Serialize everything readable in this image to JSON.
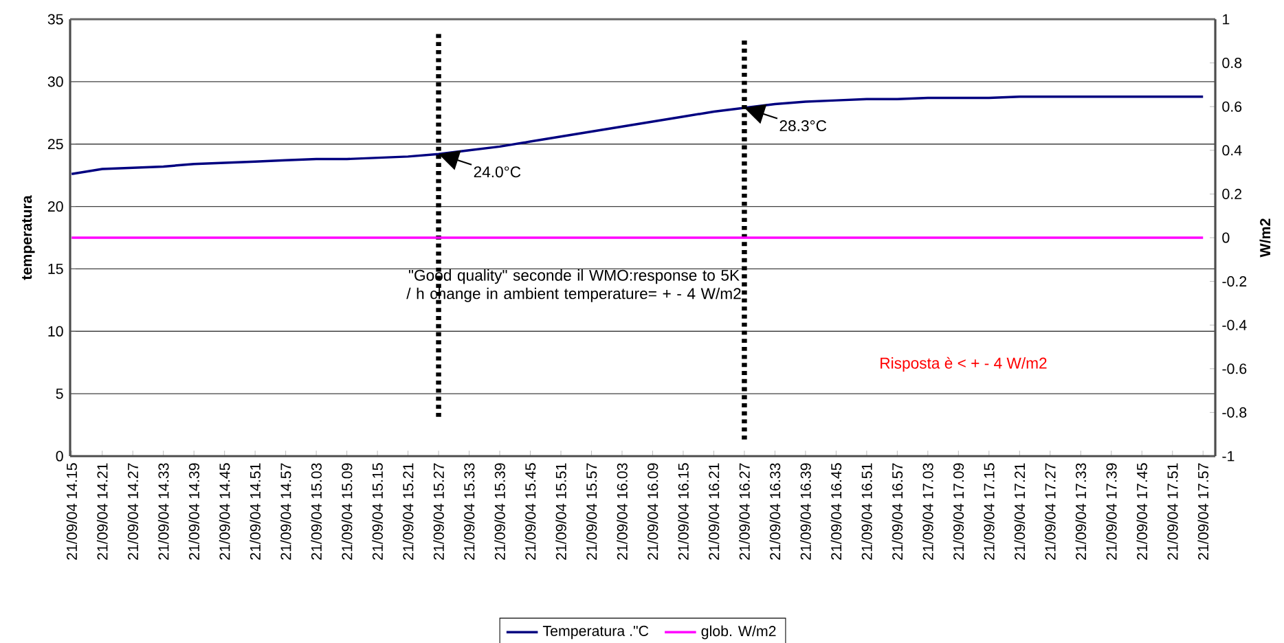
{
  "chart_data": {
    "type": "line",
    "ylabel": "temperatura",
    "y2label": "W/m2",
    "categories": [
      "21/09/04 14.15",
      "21/09/04 14.21",
      "21/09/04 14.27",
      "21/09/04 14.33",
      "21/09/04 14.39",
      "21/09/04 14.45",
      "21/09/04 14.51",
      "21/09/04 14.57",
      "21/09/04 15.03",
      "21/09/04 15.09",
      "21/09/04 15.15",
      "21/09/04 15.21",
      "21/09/04 15.27",
      "21/09/04 15.33",
      "21/09/04 15.39",
      "21/09/04 15.45",
      "21/09/04 15.51",
      "21/09/04 15.57",
      "21/09/04 16.03",
      "21/09/04 16.09",
      "21/09/04 16.15",
      "21/09/04 16.21",
      "21/09/04 16.27",
      "21/09/04 16.33",
      "21/09/04 16.39",
      "21/09/04 16.45",
      "21/09/04 16.51",
      "21/09/04 16.57",
      "21/09/04 17.03",
      "21/09/04 17.09",
      "21/09/04 17.15",
      "21/09/04 17.21",
      "21/09/04 17.27",
      "21/09/04 17.33",
      "21/09/04 17.39",
      "21/09/04 17.45",
      "21/09/04 17.51",
      "21/09/04 17.57"
    ],
    "series": [
      {
        "name": "Temperatura .\"C",
        "color": "#000080",
        "values": [
          22.6,
          23.0,
          23.1,
          23.2,
          23.4,
          23.5,
          23.6,
          23.7,
          23.8,
          23.8,
          23.9,
          24.0,
          24.2,
          24.5,
          24.8,
          25.2,
          25.6,
          26.0,
          26.4,
          26.8,
          27.2,
          27.6,
          27.9,
          28.2,
          28.4,
          28.5,
          28.6,
          28.6,
          28.7,
          28.7,
          28.7,
          28.8,
          28.8,
          28.8,
          28.8,
          28.8,
          28.8,
          28.8
        ]
      },
      {
        "name": "glob. W/m2",
        "color": "#ff00ff",
        "axis": "y2",
        "values": [
          0,
          0,
          0,
          0,
          0,
          0,
          0,
          0,
          0,
          0,
          0,
          0,
          0,
          0,
          0,
          0,
          0,
          0,
          0,
          0,
          0,
          0,
          0,
          0,
          0,
          0,
          0,
          0,
          0,
          0,
          0,
          0,
          0,
          0,
          0,
          0,
          0,
          0
        ]
      }
    ],
    "ylim": [
      0,
      35
    ],
    "yticks": [
      0,
      5,
      10,
      15,
      20,
      25,
      30,
      35
    ],
    "y2lim": [
      -1,
      1
    ],
    "y2ticks": [
      -1,
      -0.8,
      -0.6,
      -0.4,
      -0.2,
      0,
      0.2,
      0.4,
      0.6,
      0.8,
      1
    ],
    "grid": "y",
    "legend": "bottom",
    "line_style": "solid",
    "ref_lines": [
      {
        "axis": "x",
        "value": "21/09/04 15.27",
        "color": "#000000",
        "line_style": "dotted"
      },
      {
        "axis": "x",
        "value": "21/09/04 16.27",
        "color": "#000000",
        "line_style": "dotted"
      }
    ],
    "annotations": [
      {
        "text": "24.0°C",
        "x": "21/09/04 15.27",
        "y": 24.2
      },
      {
        "text": "28.3°C",
        "x": "21/09/04 16.27",
        "y": 27.9
      },
      "\"Good quality\" seconde il WMO:response to 5K / h change in ambient temperature= + - 4 W/m2",
      "Risposta è < + - 4 W/m2"
    ]
  }
}
